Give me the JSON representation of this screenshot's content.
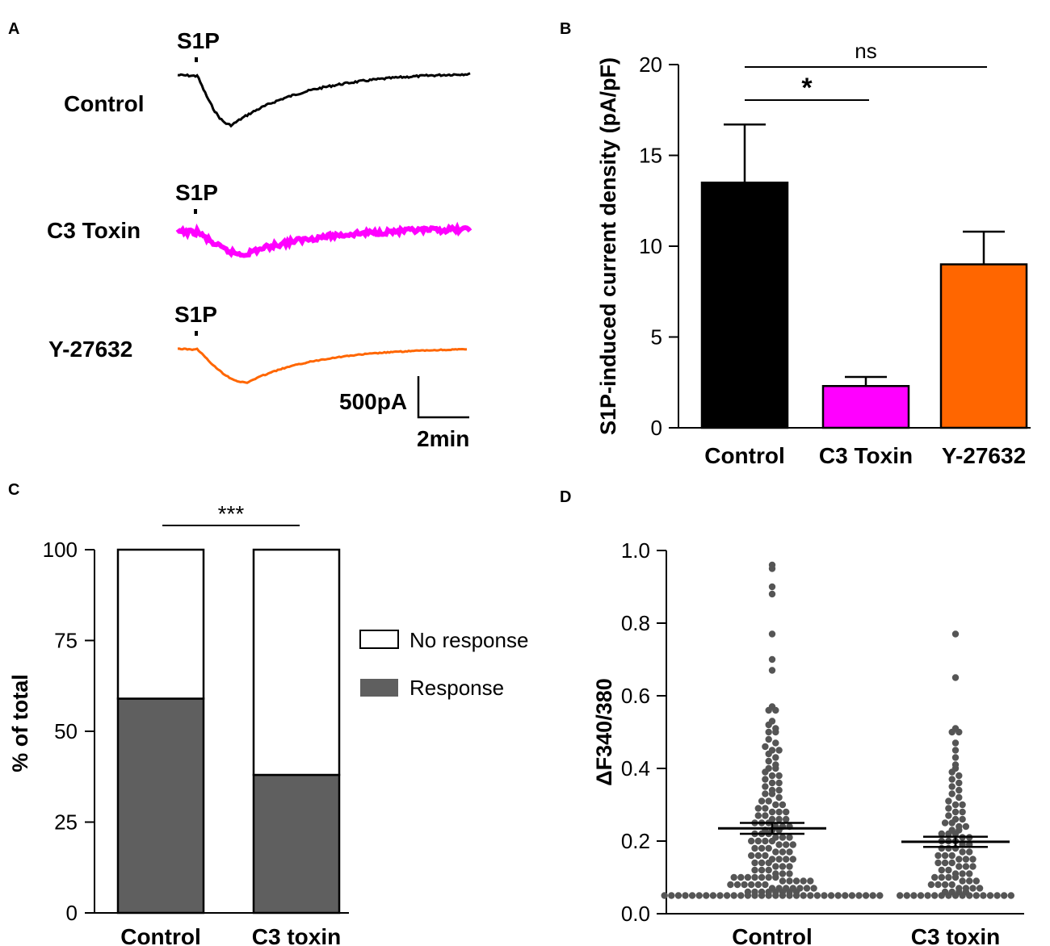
{
  "panel_labels": {
    "a": "A",
    "b": "B",
    "c": "C",
    "d": "D"
  },
  "colors": {
    "control": "#000000",
    "c3": "#ff00ff",
    "y27632": "#ff6600",
    "response": "#5f5f5f",
    "no_response": "#ffffff",
    "dot": "#555555"
  },
  "panel_a": {
    "traces": [
      {
        "name": "Control",
        "stimulus_label": "S1P",
        "color": "#000000"
      },
      {
        "name": "C3 Toxin",
        "stimulus_label": "S1P",
        "color": "#ff00ff"
      },
      {
        "name": "Y-27632",
        "stimulus_label": "S1P",
        "color": "#ff6600"
      }
    ],
    "scale_bar": {
      "current": "500pA",
      "time": "2min"
    }
  },
  "chart_data": [
    {
      "panel": "B",
      "type": "bar",
      "categories": [
        "Control",
        "C3 Toxin",
        "Y-27632"
      ],
      "values": [
        13.5,
        2.3,
        9.0
      ],
      "errors": [
        3.2,
        0.5,
        1.8
      ],
      "colors": [
        "#000000",
        "#ff00ff",
        "#ff6600"
      ],
      "ylabel": "S1P-induced current density (pA/pF)",
      "ylim": [
        0,
        20
      ],
      "yticks": [
        0,
        5,
        10,
        15,
        20
      ],
      "significance": [
        {
          "from": "Control",
          "to": "C3 Toxin",
          "label": "*"
        },
        {
          "from": "Control",
          "to": "Y-27632",
          "label": "ns"
        }
      ]
    },
    {
      "panel": "C",
      "type": "bar",
      "stacked": true,
      "categories": [
        "Control",
        "C3 toxin"
      ],
      "series": [
        {
          "name": "Response",
          "values": [
            59,
            38
          ],
          "color": "#5f5f5f"
        },
        {
          "name": "No response",
          "values": [
            41,
            62
          ],
          "color": "#ffffff"
        }
      ],
      "legend": [
        "No response",
        "Response"
      ],
      "ylabel": "% of total",
      "ylim": [
        0,
        100
      ],
      "yticks": [
        0,
        25,
        50,
        75,
        100
      ],
      "significance": [
        {
          "from": "Control",
          "to": "C3 toxin",
          "label": "***"
        }
      ]
    },
    {
      "panel": "D",
      "type": "scatter",
      "categories": [
        "Control",
        "C3 toxin"
      ],
      "ylabel": "ΔF340/380",
      "ylim": [
        0,
        1.0
      ],
      "yticks": [
        "0.0",
        "0.2",
        "0.4",
        "0.6",
        "0.8",
        "1.0"
      ],
      "means": [
        0.235,
        0.198
      ],
      "sems": [
        0.015,
        0.014
      ],
      "points": [
        [
          0.96,
          0.95,
          0.9,
          0.88,
          0.77,
          0.7,
          0.67,
          0.57,
          0.56,
          0.56,
          0.53,
          0.52,
          0.51,
          0.5,
          0.5,
          0.48,
          0.47,
          0.46,
          0.45,
          0.45,
          0.44,
          0.43,
          0.42,
          0.41,
          0.4,
          0.4,
          0.39,
          0.38,
          0.38,
          0.37,
          0.36,
          0.36,
          0.35,
          0.34,
          0.34,
          0.33,
          0.33,
          0.32,
          0.31,
          0.31,
          0.3,
          0.3,
          0.29,
          0.29,
          0.28,
          0.28,
          0.28,
          0.27,
          0.27,
          0.26,
          0.26,
          0.26,
          0.25,
          0.25,
          0.25,
          0.24,
          0.24,
          0.24,
          0.23,
          0.23,
          0.23,
          0.22,
          0.22,
          0.22,
          0.21,
          0.21,
          0.21,
          0.2,
          0.2,
          0.2,
          0.2,
          0.19,
          0.19,
          0.19,
          0.18,
          0.18,
          0.18,
          0.17,
          0.17,
          0.17,
          0.16,
          0.16,
          0.16,
          0.15,
          0.15,
          0.15,
          0.15,
          0.14,
          0.14,
          0.14,
          0.13,
          0.13,
          0.13,
          0.12,
          0.12,
          0.12,
          0.11,
          0.11,
          0.11,
          0.1,
          0.1,
          0.1,
          0.1,
          0.1,
          0.1,
          0.1,
          0.09,
          0.09,
          0.09,
          0.09,
          0.09,
          0.08,
          0.08,
          0.08,
          0.08,
          0.08,
          0.08,
          0.07,
          0.07,
          0.07,
          0.07,
          0.07,
          0.07,
          0.07,
          0.06,
          0.06,
          0.06,
          0.06,
          0.06,
          0.06,
          0.06,
          0.06,
          0.05,
          0.05,
          0.05,
          0.05,
          0.05,
          0.05,
          0.05,
          0.05,
          0.05,
          0.05,
          0.05,
          0.05,
          0.05,
          0.05,
          0.05,
          0.05,
          0.05,
          0.05,
          0.05,
          0.05,
          0.05,
          0.05,
          0.05,
          0.05,
          0.05,
          0.05,
          0.05,
          0.05,
          0.05,
          0.05,
          0.05,
          0.05
        ],
        [
          0.77,
          0.65,
          0.51,
          0.5,
          0.5,
          0.47,
          0.45,
          0.43,
          0.41,
          0.4,
          0.39,
          0.38,
          0.37,
          0.36,
          0.35,
          0.34,
          0.33,
          0.32,
          0.31,
          0.3,
          0.3,
          0.29,
          0.28,
          0.28,
          0.27,
          0.26,
          0.26,
          0.25,
          0.25,
          0.24,
          0.24,
          0.23,
          0.23,
          0.22,
          0.22,
          0.22,
          0.21,
          0.21,
          0.2,
          0.2,
          0.2,
          0.19,
          0.19,
          0.18,
          0.18,
          0.18,
          0.17,
          0.17,
          0.16,
          0.16,
          0.16,
          0.15,
          0.15,
          0.15,
          0.14,
          0.14,
          0.14,
          0.13,
          0.13,
          0.13,
          0.12,
          0.12,
          0.11,
          0.11,
          0.11,
          0.1,
          0.1,
          0.1,
          0.1,
          0.09,
          0.09,
          0.09,
          0.08,
          0.08,
          0.08,
          0.08,
          0.07,
          0.07,
          0.07,
          0.07,
          0.06,
          0.06,
          0.06,
          0.06,
          0.05,
          0.05,
          0.05,
          0.05,
          0.05,
          0.05,
          0.05,
          0.05,
          0.05,
          0.05,
          0.05,
          0.05,
          0.05,
          0.05,
          0.05,
          0.05,
          0.05
        ]
      ]
    }
  ]
}
